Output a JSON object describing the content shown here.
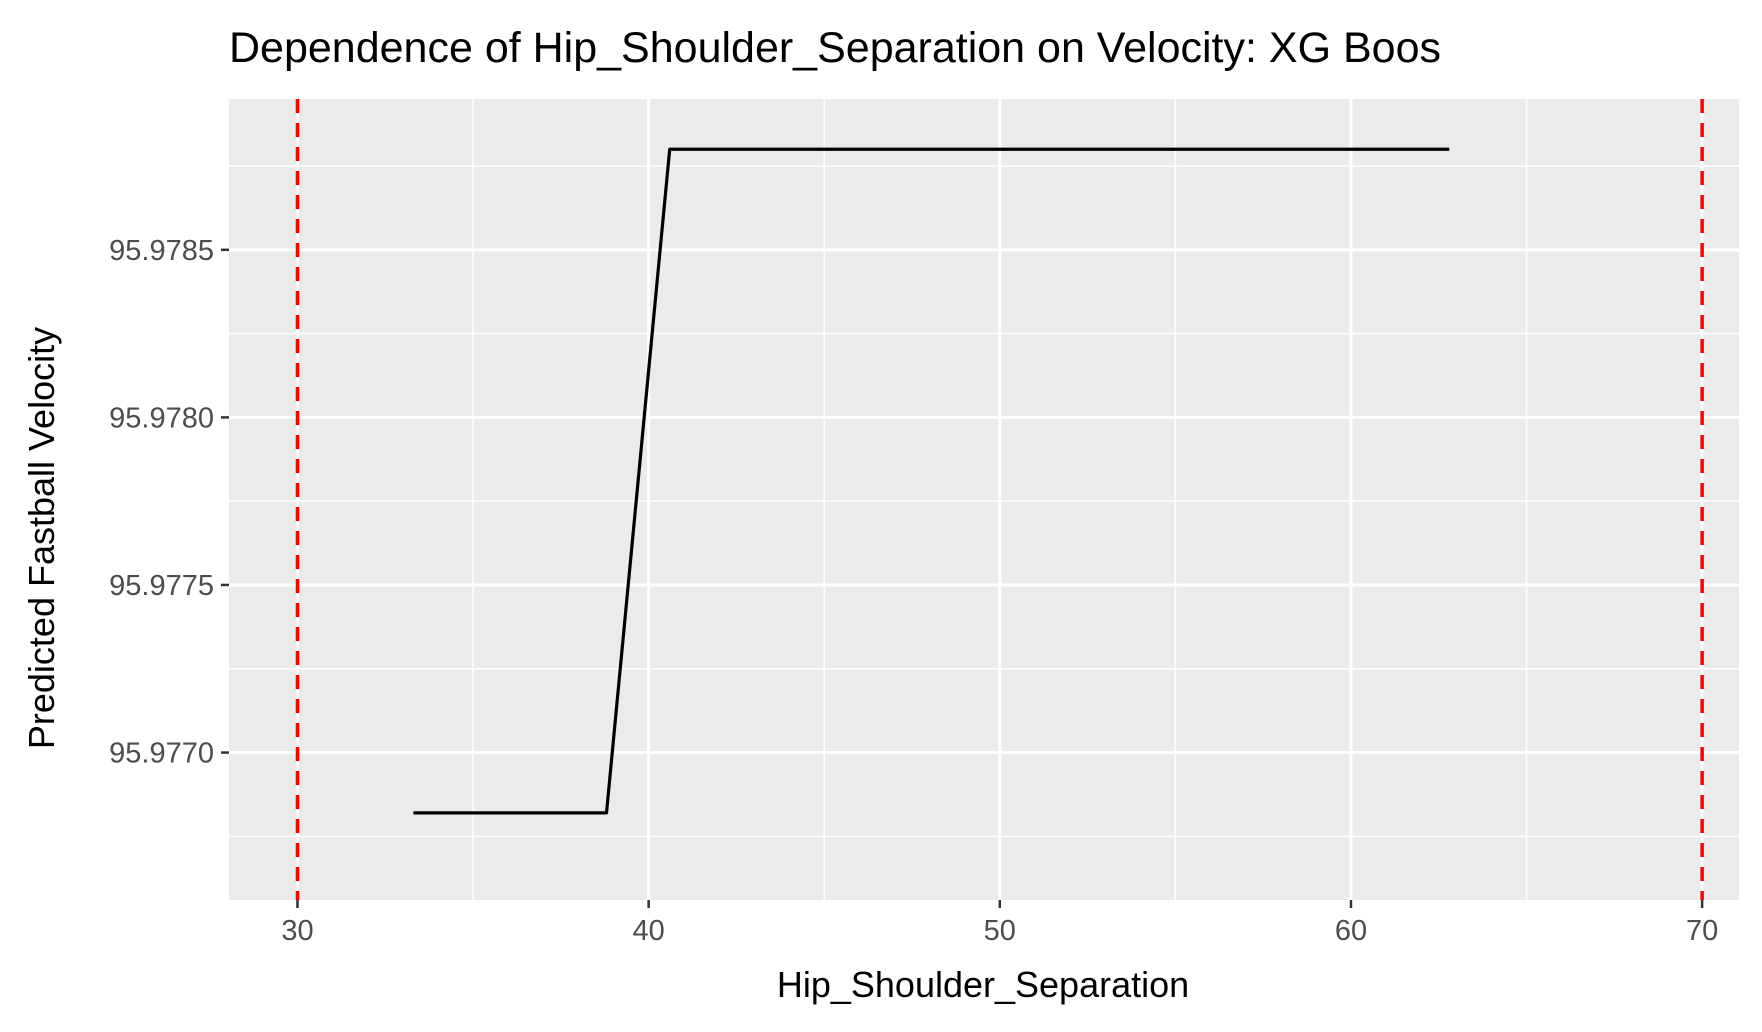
{
  "chart_data": {
    "type": "line",
    "title": "Dependence of Hip_Shoulder_Separation on Velocity: XG Boos",
    "xlabel": "Hip_Shoulder_Separation",
    "ylabel": "Predicted Fastball Velocity",
    "xlim": [
      28.05,
      71.05
    ],
    "ylim": [
      95.97656,
      95.97895
    ],
    "x_ticks": [
      30,
      40,
      50,
      60,
      70
    ],
    "x_tick_labels": [
      "30",
      "40",
      "50",
      "60",
      "70"
    ],
    "y_ticks": [
      95.977,
      95.9775,
      95.978,
      95.9785
    ],
    "y_tick_labels": [
      "95.9770",
      "95.9775",
      "95.9780",
      "95.9785"
    ],
    "grid": true,
    "series": [
      {
        "color": "#000000",
        "x": [
          33.3,
          38.8,
          40.6,
          62.8
        ],
        "y": [
          95.97682,
          95.97682,
          95.9788,
          95.9788
        ]
      }
    ],
    "reference_lines": [
      {
        "orientation": "vertical",
        "x": 30,
        "color": "#ff0000",
        "style": "dashed"
      },
      {
        "orientation": "vertical",
        "x": 70,
        "color": "#ff0000",
        "style": "dashed"
      }
    ],
    "panel_background": "#ebebeb",
    "grid_color": "#ffffff"
  }
}
